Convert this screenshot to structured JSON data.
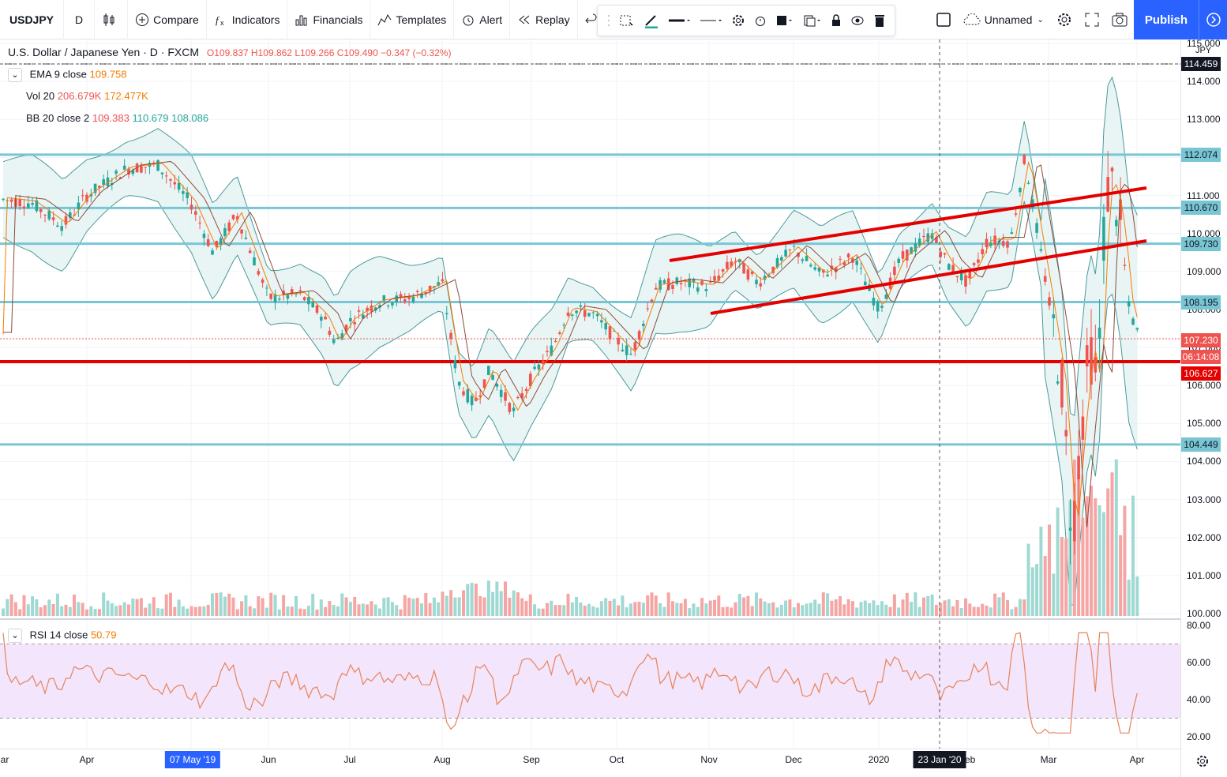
{
  "toolbar": {
    "symbol": "USDJPY",
    "interval": "D",
    "compare": "Compare",
    "indicators": "Indicators",
    "financials": "Financials",
    "templates": "Templates",
    "alert": "Alert",
    "replay": "Replay",
    "layout_name": "Unnamed",
    "publish": "Publish"
  },
  "legend": {
    "title": "U.S. Dollar / Japanese Yen · D · FXCM",
    "ohlc": "O109.837  H109.862  L109.266  C109.490  −0.347 (−0.32%)",
    "ema_label": "EMA 9 close",
    "ema_value": "109.758",
    "vol_label": "Vol 20",
    "vol_value1": "206.679K",
    "vol_value2": "172.477K",
    "bb_label": "BB 20 close 2",
    "bb_value1": "109.383",
    "bb_value2": "110.679",
    "bb_value3": "108.086",
    "rsi_label": "RSI 14 close",
    "rsi_value": "50.79"
  },
  "price_axis": {
    "currency": "JPY",
    "ticks": [
      "115.000",
      "114.000",
      "113.000",
      "112.000",
      "111.000",
      "110.000",
      "109.000",
      "108.000",
      "107.000",
      "106.000",
      "105.000",
      "104.000",
      "103.000",
      "102.000",
      "101.000",
      "100.000"
    ],
    "current_top": "114.459",
    "current_price": "107.230",
    "countdown": "06:14:08",
    "red_line_label": "106.627"
  },
  "hlines": [
    {
      "label": "112.074"
    },
    {
      "label": "110.670"
    },
    {
      "label": "109.730"
    },
    {
      "label": "108.195"
    },
    {
      "label": "104.449"
    }
  ],
  "rsi_axis": {
    "ticks": [
      "80.00",
      "60.00",
      "40.00",
      "20.00"
    ]
  },
  "time_axis": {
    "labels": [
      "ar",
      "Apr",
      "Jun",
      "Jul",
      "Aug",
      "Sep",
      "Oct",
      "Nov",
      "Dec",
      "2020",
      "Feb",
      "Mar",
      "Apr"
    ],
    "badge_left": "07 May '19",
    "badge_right": "23 Jan '20"
  },
  "colors": {
    "hline": "#78c6d4",
    "support_red": "#e50000",
    "up": "#26a69a",
    "down": "#ef5350",
    "bb_fill": "#e3f3f3",
    "rsi_fill": "#f3e5fb"
  },
  "chart_data": {
    "type": "candlestick",
    "symbol": "USDJPY",
    "ylim": [
      100,
      115
    ],
    "support_line": 106.627,
    "horizontal_levels": [
      112.074,
      110.67,
      109.73,
      108.195,
      104.449
    ],
    "ohlc_last": {
      "open": 109.837,
      "high": 109.862,
      "low": 109.266,
      "close": 109.49
    },
    "rsi_range": [
      20,
      80
    ]
  }
}
